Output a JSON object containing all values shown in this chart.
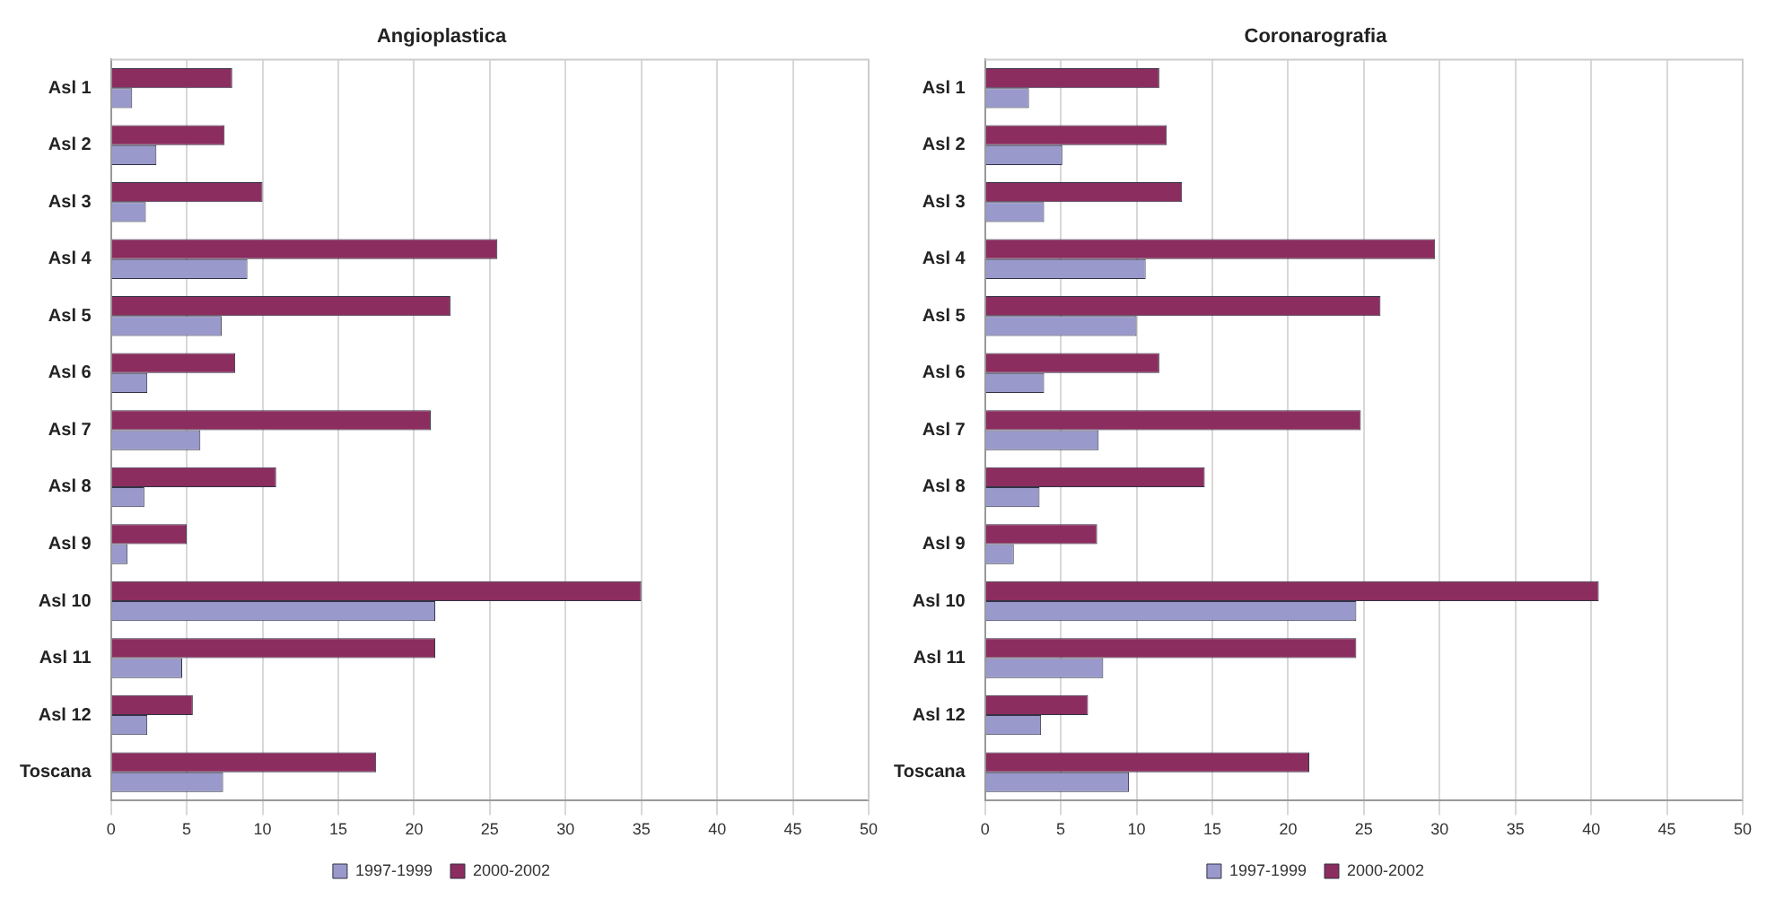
{
  "chart_data": [
    {
      "type": "bar",
      "orientation": "horizontal",
      "title": "Angioplastica",
      "categories": [
        "Asl 1",
        "Asl 2",
        "Asl 3",
        "Asl 4",
        "Asl 5",
        "Asl 6",
        "Asl 7",
        "Asl 8",
        "Asl 9",
        "Asl 10",
        "Asl 11",
        "Asl 12",
        "Toscana"
      ],
      "series": [
        {
          "name": "1997-1999",
          "color": "#9999cc",
          "values": [
            1.4,
            3.0,
            2.3,
            9.0,
            7.3,
            2.4,
            5.9,
            2.2,
            1.1,
            21.4,
            4.7,
            2.4,
            7.4
          ]
        },
        {
          "name": "2000-2002",
          "color": "#8b2d5f",
          "values": [
            8.0,
            7.5,
            10.0,
            25.5,
            22.4,
            8.2,
            21.1,
            10.9,
            5.0,
            35.0,
            21.4,
            5.4,
            17.5
          ]
        }
      ],
      "xlim": [
        0,
        50
      ],
      "xticks": [
        0,
        5,
        10,
        15,
        20,
        25,
        30,
        35,
        40,
        45,
        50
      ],
      "grid": "x",
      "legend": "bottom"
    },
    {
      "type": "bar",
      "orientation": "horizontal",
      "title": "Coronarografia",
      "categories": [
        "Asl 1",
        "Asl 2",
        "Asl 3",
        "Asl 4",
        "Asl 5",
        "Asl 6",
        "Asl 7",
        "Asl 8",
        "Asl 9",
        "Asl 10",
        "Asl 11",
        "Asl 12",
        "Toscana"
      ],
      "series": [
        {
          "name": "1997-1999",
          "color": "#9999cc",
          "values": [
            2.9,
            5.1,
            3.9,
            10.6,
            10.0,
            3.9,
            7.5,
            3.6,
            1.9,
            24.5,
            7.8,
            3.7,
            9.5
          ]
        },
        {
          "name": "2000-2002",
          "color": "#8b2d5f",
          "values": [
            11.5,
            12.0,
            13.0,
            29.7,
            26.1,
            11.5,
            24.8,
            14.5,
            7.4,
            40.5,
            24.5,
            6.8,
            21.4
          ]
        }
      ],
      "xlim": [
        0,
        50
      ],
      "xticks": [
        0,
        5,
        10,
        15,
        20,
        25,
        30,
        35,
        40,
        45,
        50
      ],
      "grid": "x",
      "legend": "bottom"
    }
  ]
}
